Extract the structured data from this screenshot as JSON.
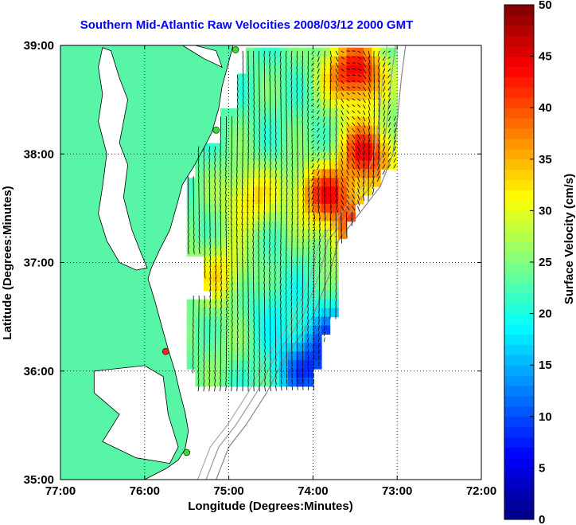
{
  "chart_data": {
    "type": "heatmap",
    "title": "Southern Mid-Atlantic Raw Velocities 2008/03/12 2000 GMT",
    "xlabel": "Longitude (Degrees:Minutes)",
    "ylabel": "Latitude (Degrees:Minutes)",
    "x_ticks": [
      "77:00",
      "76:00",
      "75:00",
      "74:00",
      "73:00",
      "72:00"
    ],
    "y_ticks": [
      "39:00",
      "38:00",
      "37:00",
      "36:00",
      "35:00"
    ],
    "xlim": [
      -77,
      -72
    ],
    "ylim": [
      35,
      39
    ],
    "grid": true,
    "colorbar": {
      "label": "Surface Velocity (cm/s)",
      "ticks": [
        "0",
        "5",
        "10",
        "15",
        "20",
        "25",
        "30",
        "35",
        "40",
        "45",
        "50"
      ],
      "range": [
        0,
        50
      ],
      "colormap": "jet"
    },
    "land_color": "#59f5a6",
    "stations": [
      {
        "lon": -74.92,
        "lat": 38.96,
        "color": "#33dd33"
      },
      {
        "lon": -75.15,
        "lat": 38.22,
        "color": "#33dd33"
      },
      {
        "lon": -75.75,
        "lat": 36.18,
        "color": "#ff2222"
      },
      {
        "lon": -75.5,
        "lat": 35.25,
        "color": "#33dd33"
      }
    ],
    "velocity_field": {
      "description_units": "cm/s",
      "hotspots": [
        {
          "lon": -73.5,
          "lat": 38.75,
          "speed": 45
        },
        {
          "lon": -73.4,
          "lat": 38.0,
          "speed": 46
        },
        {
          "lon": -73.85,
          "lat": 37.65,
          "speed": 44
        },
        {
          "lon": -73.4,
          "lat": 37.25,
          "speed": 42
        },
        {
          "lon": -74.75,
          "lat": 37.6,
          "speed": 33
        },
        {
          "lon": -75.1,
          "lat": 36.9,
          "speed": 32
        },
        {
          "lon": -73.7,
          "lat": 37.9,
          "speed": 15
        },
        {
          "lon": -73.75,
          "lat": 36.3,
          "speed": 12
        },
        {
          "lon": -74.1,
          "lat": 36.0,
          "speed": 11
        },
        {
          "lon": -74.5,
          "lat": 36.6,
          "speed": 20
        },
        {
          "lon": -75.1,
          "lat": 36.2,
          "speed": 25
        }
      ],
      "background_speed": 23
    }
  }
}
